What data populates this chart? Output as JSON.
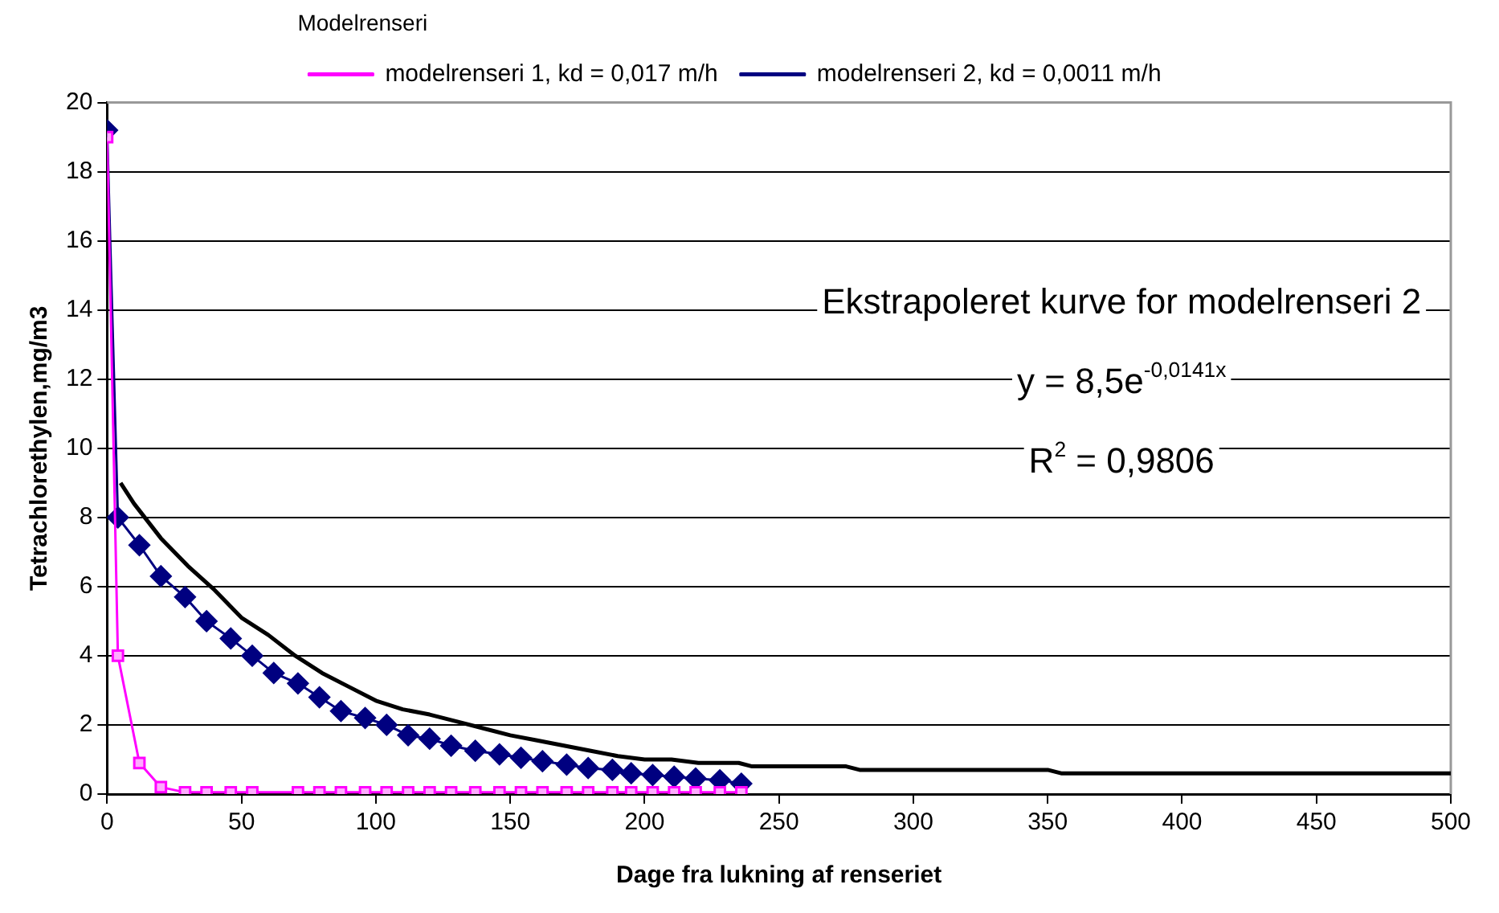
{
  "chart_data": {
    "type": "line",
    "xlabel": "Dage fra lukning af renseriet",
    "ylabel": "Tetrachlorethylen,mg/m3",
    "legend_title": "Modelrenseri",
    "legend": "top",
    "grid": "y",
    "xlim": [
      0,
      500
    ],
    "xticks": [
      0,
      50,
      100,
      150,
      200,
      250,
      300,
      350,
      400,
      450,
      500
    ],
    "ylim": [
      0,
      20
    ],
    "yticks": [
      0,
      2,
      4,
      6,
      8,
      10,
      12,
      14,
      16,
      18,
      20
    ],
    "annotations": [
      "Ekstrapoleret kurve for modelrenseri 2",
      "y = 8,5e$^{-0,0141x}$",
      "R$^{2}$ = 0,9806"
    ],
    "series": [
      {
        "name": "modelrenseri 1, kd = 0,017 m/h",
        "color": "#ff00ff",
        "marker": "square",
        "x": [
          0,
          4,
          12,
          20,
          29,
          37,
          46,
          54,
          71,
          79,
          87,
          96,
          104,
          112,
          120,
          128,
          137,
          146,
          154,
          162,
          171,
          179,
          188,
          195,
          203,
          211,
          219,
          228,
          236
        ],
        "values": [
          19,
          4.0,
          0.9,
          0.2,
          0.05,
          0.05,
          0.05,
          0.05,
          0.05,
          0.05,
          0.05,
          0.05,
          0.05,
          0.05,
          0.05,
          0.05,
          0.05,
          0.05,
          0.05,
          0.05,
          0.05,
          0.05,
          0.05,
          0.05,
          0.05,
          0.05,
          0.05,
          0.05,
          0.05
        ]
      },
      {
        "name": "modelrenseri 2, kd = 0,0011 m/h",
        "color": "#000080",
        "marker": "diamond",
        "x": [
          0,
          4,
          12,
          20,
          29,
          37,
          46,
          54,
          62,
          71,
          79,
          87,
          96,
          104,
          112,
          120,
          128,
          137,
          146,
          154,
          162,
          171,
          179,
          188,
          195,
          203,
          211,
          219,
          228,
          236
        ],
        "values": [
          19.2,
          8.0,
          7.2,
          6.3,
          5.7,
          5.0,
          4.5,
          4.0,
          3.5,
          3.2,
          2.8,
          2.4,
          2.2,
          2.0,
          1.7,
          1.6,
          1.4,
          1.25,
          1.15,
          1.05,
          0.95,
          0.85,
          0.75,
          0.7,
          0.6,
          0.55,
          0.5,
          0.45,
          0.4,
          0.3
        ]
      },
      {
        "color": "#000000",
        "marker": "none",
        "x": [
          5,
          10,
          20,
          30,
          40,
          50,
          60,
          70,
          80,
          90,
          100,
          110,
          120,
          130,
          140,
          150,
          160,
          170,
          180,
          190,
          200,
          210,
          220,
          235,
          240,
          275,
          280,
          350,
          355,
          500
        ],
        "values": [
          9.0,
          8.4,
          7.4,
          6.6,
          5.9,
          5.1,
          4.6,
          4.0,
          3.5,
          3.1,
          2.7,
          2.45,
          2.3,
          2.1,
          1.9,
          1.7,
          1.55,
          1.4,
          1.25,
          1.1,
          1.0,
          1.0,
          0.9,
          0.9,
          0.8,
          0.8,
          0.7,
          0.7,
          0.6,
          0.6
        ]
      }
    ]
  }
}
